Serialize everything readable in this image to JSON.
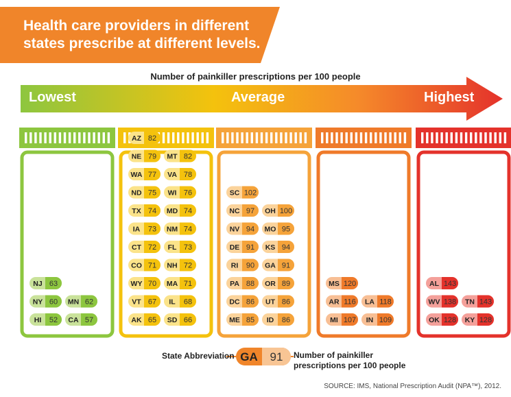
{
  "header": {
    "title_line1": "Health care providers in different",
    "title_line2": "states prescribe at different levels."
  },
  "scale": {
    "subtitle": "Number of painkiller prescriptions per 100 people",
    "lowest": "Lowest",
    "average": "Average",
    "highest": "Highest"
  },
  "chart_data": {
    "type": "table",
    "title": "Health care providers in different states prescribe at different levels.",
    "subtitle": "Number of painkiller prescriptions per 100 people",
    "groups": [
      {
        "color": "#8dc63f",
        "light": "#c9e29a",
        "states": [
          [
            "NJ",
            63
          ],
          [
            "NY",
            60
          ],
          [
            "MN",
            62
          ],
          [
            "HI",
            52
          ],
          [
            "CA",
            57
          ]
        ]
      },
      {
        "color": "#f4c20d",
        "light": "#fbe38a",
        "states": [
          [
            "AZ",
            82
          ],
          [
            "NE",
            79
          ],
          [
            "MT",
            82
          ],
          [
            "WA",
            77
          ],
          [
            "VA",
            78
          ],
          [
            "ND",
            75
          ],
          [
            "WI",
            76
          ],
          [
            "TX",
            74
          ],
          [
            "MD",
            74
          ],
          [
            "IA",
            73
          ],
          [
            "NM",
            74
          ],
          [
            "CT",
            72
          ],
          [
            "FL",
            73
          ],
          [
            "CO",
            71
          ],
          [
            "NH",
            72
          ],
          [
            "WY",
            70
          ],
          [
            "MA",
            71
          ],
          [
            "VT",
            67
          ],
          [
            "IL",
            68
          ],
          [
            "AK",
            65
          ],
          [
            "SD",
            66
          ]
        ]
      },
      {
        "color": "#f5a33a",
        "light": "#fbd39b",
        "states": [
          [
            "SC",
            102
          ],
          [
            "NC",
            97
          ],
          [
            "OH",
            100
          ],
          [
            "NV",
            94
          ],
          [
            "MO",
            95
          ],
          [
            "DE",
            91
          ],
          [
            "KS",
            94
          ],
          [
            "RI",
            90
          ],
          [
            "GA",
            91
          ],
          [
            "PA",
            88
          ],
          [
            "OR",
            89
          ],
          [
            "DC",
            86
          ],
          [
            "UT",
            86
          ],
          [
            "ME",
            85
          ],
          [
            "ID",
            86
          ]
        ]
      },
      {
        "color": "#ef7a2a",
        "light": "#f8bf95",
        "states": [
          [
            "MS",
            120
          ],
          [
            "AR",
            116
          ],
          [
            "LA",
            118
          ],
          [
            "MI",
            107
          ],
          [
            "IN",
            109
          ]
        ]
      },
      {
        "color": "#e4322b",
        "light": "#f4a09a",
        "states": [
          [
            "AL",
            143
          ],
          [
            "WV",
            138
          ],
          [
            "TN",
            143
          ],
          [
            "OK",
            128
          ],
          [
            "KY",
            128
          ]
        ]
      }
    ]
  },
  "legend": {
    "state_label": "State Abbreviation",
    "example_abbr": "GA",
    "example_value": "91",
    "value_label_line1": "Number of painkiller",
    "value_label_line2": "prescriptions per 100 people"
  },
  "source": "SOURCE: IMS, National Prescription Audit (NPA™), 2012."
}
